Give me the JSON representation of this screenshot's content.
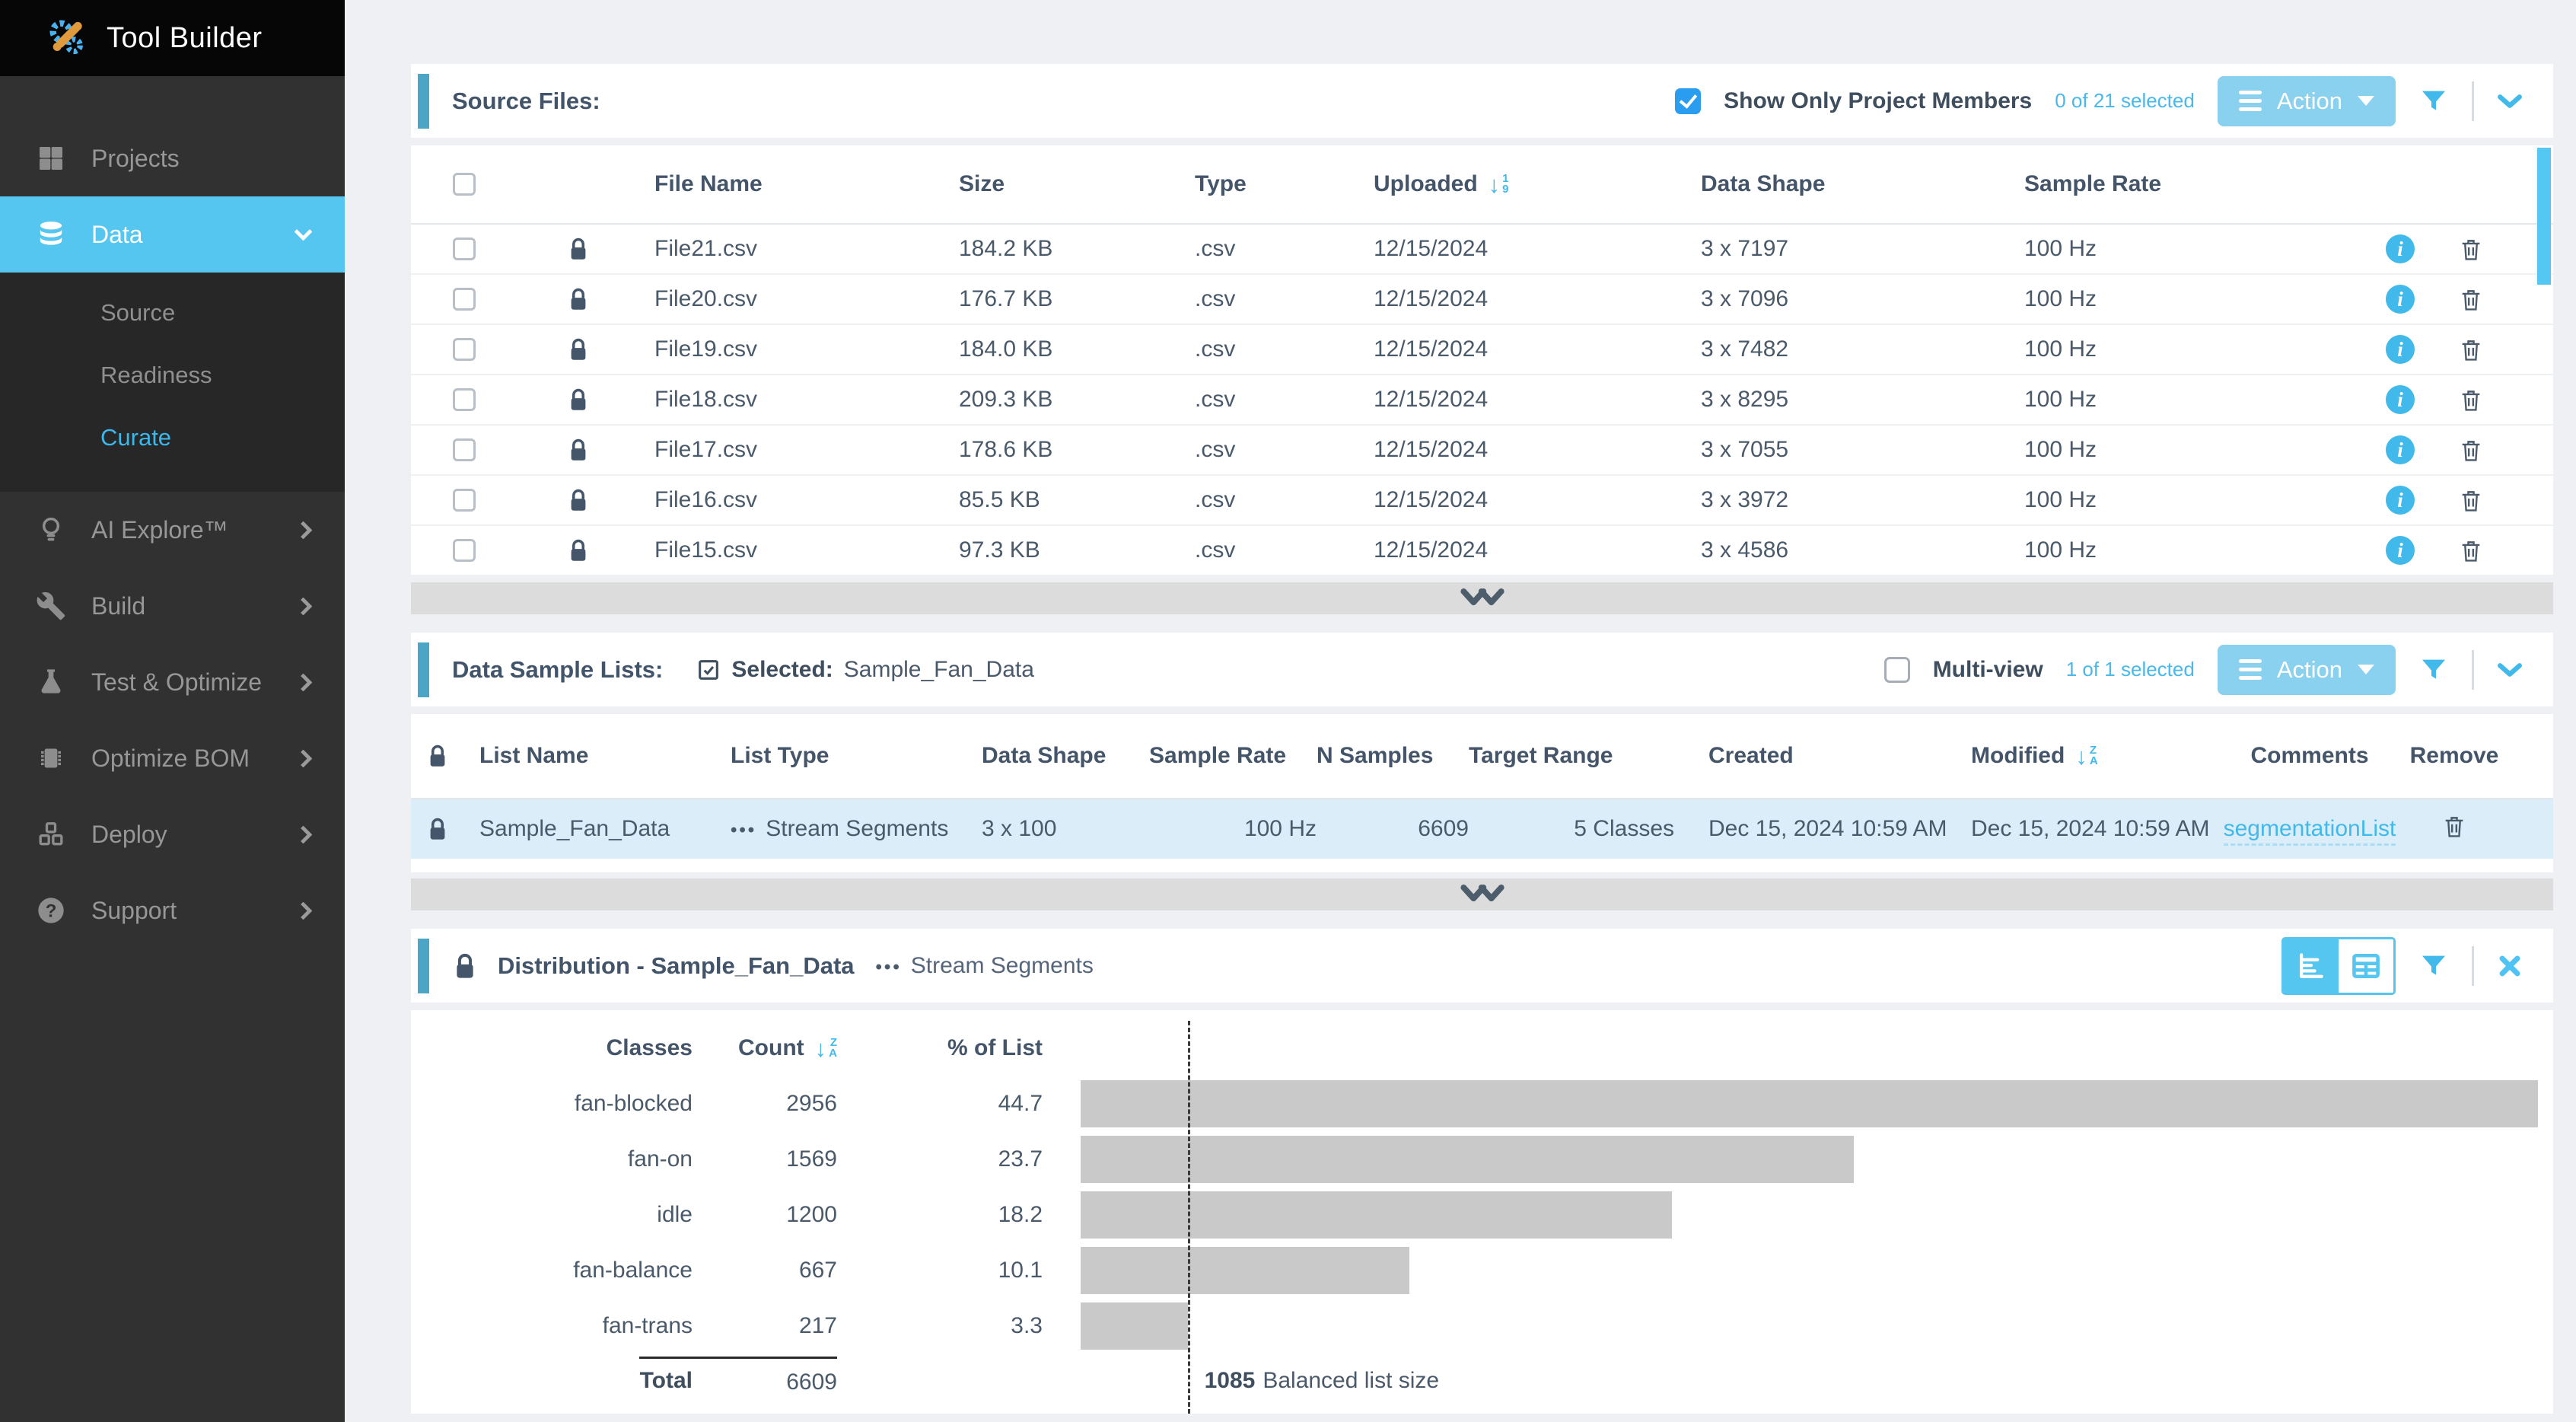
{
  "app": {
    "title": "Tool Builder"
  },
  "colors": {
    "sidebar_bg": "#313131",
    "sidebar_active": "#54c6f0",
    "submenu_link_active": "#3cb7ea",
    "panel_accent": "#4aa5c6",
    "action_button": "#8ad1f0",
    "link_blue": "#41b9ea",
    "selected_row": "#daedf8",
    "bar_fill": "#c9c9c9",
    "scroll_thumb": "#55c7f3"
  },
  "sidebar": {
    "projects": "Projects",
    "data": "Data",
    "data_children": {
      "source": "Source",
      "readiness": "Readiness",
      "curate": "Curate"
    },
    "ai_explore": "AI Explore™",
    "build": "Build",
    "test_optimize": "Test & Optimize",
    "optimize_bom": "Optimize BOM",
    "deploy": "Deploy",
    "support": "Support"
  },
  "source_files": {
    "title": "Source Files:",
    "show_only_label": "Show Only Project Members",
    "selection_summary": "0 of 21 selected",
    "action_label": "Action",
    "headers": {
      "file": "File Name",
      "size": "Size",
      "type": "Type",
      "uploaded": "Uploaded",
      "shape": "Data Shape",
      "rate": "Sample Rate"
    },
    "rows": [
      {
        "file": "File21.csv",
        "size": "184.2 KB",
        "type": ".csv",
        "uploaded": "12/15/2024",
        "shape": "3 x 7197",
        "rate": "100 Hz"
      },
      {
        "file": "File20.csv",
        "size": "176.7 KB",
        "type": ".csv",
        "uploaded": "12/15/2024",
        "shape": "3 x 7096",
        "rate": "100 Hz"
      },
      {
        "file": "File19.csv",
        "size": "184.0 KB",
        "type": ".csv",
        "uploaded": "12/15/2024",
        "shape": "3 x 7482",
        "rate": "100 Hz"
      },
      {
        "file": "File18.csv",
        "size": "209.3 KB",
        "type": ".csv",
        "uploaded": "12/15/2024",
        "shape": "3 x 8295",
        "rate": "100 Hz"
      },
      {
        "file": "File17.csv",
        "size": "178.6 KB",
        "type": ".csv",
        "uploaded": "12/15/2024",
        "shape": "3 x 7055",
        "rate": "100 Hz"
      },
      {
        "file": "File16.csv",
        "size": "85.5 KB",
        "type": ".csv",
        "uploaded": "12/15/2024",
        "shape": "3 x 3972",
        "rate": "100 Hz"
      },
      {
        "file": "File15.csv",
        "size": "97.3 KB",
        "type": ".csv",
        "uploaded": "12/15/2024",
        "shape": "3 x 4586",
        "rate": "100 Hz"
      }
    ]
  },
  "sample_lists": {
    "title": "Data Sample Lists:",
    "selected_label": "Selected:",
    "selected_value": "Sample_Fan_Data",
    "multiview_label": "Multi-view",
    "selection_summary": "1 of 1 selected",
    "action_label": "Action",
    "headers": {
      "name": "List Name",
      "type": "List Type",
      "shape": "Data Shape",
      "rate": "Sample Rate",
      "samples": "N Samples",
      "range": "Target Range",
      "created": "Created",
      "modified": "Modified",
      "comments": "Comments",
      "remove": "Remove"
    },
    "row": {
      "name": "Sample_Fan_Data",
      "type": "Stream Segments",
      "shape": "3 x 100",
      "rate": "100 Hz",
      "samples": "6609",
      "range": "5 Classes",
      "created": "Dec 15, 2024 10:59 AM",
      "modified": "Dec 15, 2024 10:59 AM",
      "comments": "segmentationList"
    }
  },
  "distribution": {
    "title": "Distribution - Sample_Fan_Data",
    "subtitle": "Stream Segments",
    "headers": {
      "classes": "Classes",
      "count": "Count",
      "pct": "% of List"
    },
    "total_label": "Total"
  },
  "chart_data": {
    "type": "bar",
    "orientation": "horizontal",
    "title": "Distribution - Sample_Fan_Data",
    "categories": [
      "fan-blocked",
      "fan-on",
      "idle",
      "fan-balance",
      "fan-trans"
    ],
    "values": [
      2956,
      1569,
      1200,
      667,
      217
    ],
    "percents": [
      "44.7",
      "23.7",
      "18.2",
      "10.1",
      "3.3"
    ],
    "total": 6609,
    "xlim": [
      0,
      2956
    ],
    "bar_color": "#c9c9c9",
    "grid": false,
    "legend": false,
    "annotations": [
      {
        "value": 1085,
        "label": "Balanced list size",
        "at_count": 217
      }
    ]
  }
}
